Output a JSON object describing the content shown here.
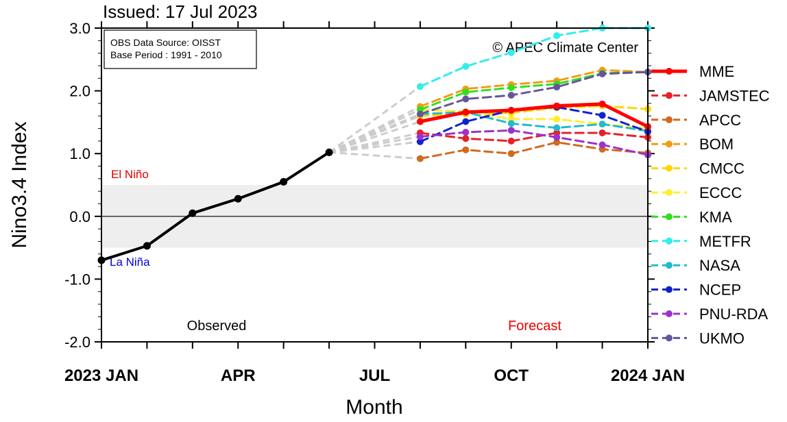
{
  "chart_data": {
    "type": "line",
    "title": "Issued: 17 Jul 2023",
    "xlabel": "Month",
    "ylabel": "Nino3.4 Index",
    "ylim": [
      -2.0,
      3.0
    ],
    "xlim": [
      "2023-01",
      "2024-01"
    ],
    "y_ticks": [
      "3.0",
      "2.0",
      "1.0",
      "0.0",
      "-1.0",
      "-2.0"
    ],
    "x_ticks": [
      {
        "month": "2023-01",
        "label": "2023 JAN"
      },
      {
        "month": "2023-04",
        "label": "APR"
      },
      {
        "month": "2023-07",
        "label": "JUL"
      },
      {
        "month": "2023-10",
        "label": "OCT"
      },
      {
        "month": "2024-01",
        "label": "2024 JAN"
      }
    ],
    "shaded_band": [
      -0.5,
      0.5
    ],
    "info_box": [
      "OBS Data Source: OISST",
      "Base Period : 1991 - 2010"
    ],
    "copyright": "© APEC Climate Center",
    "annotations": {
      "el_nino": "El Niño",
      "la_nina": "La Niña",
      "observed": "Observed",
      "forecast": "Forecast"
    },
    "observed": {
      "x": [
        "2023-01",
        "2023-02",
        "2023-03",
        "2023-04",
        "2023-05",
        "2023-06"
      ],
      "values": [
        -0.7,
        -0.47,
        0.05,
        0.28,
        0.55,
        1.02
      ],
      "color": "#000000"
    },
    "forecast_x": [
      "2023-08",
      "2023-09",
      "2023-10",
      "2023-11",
      "2023-12",
      "2024-01"
    ],
    "series": [
      {
        "name": "MME",
        "color": "#ff0000",
        "values": [
          1.51,
          1.66,
          1.69,
          1.76,
          1.79,
          1.43
        ]
      },
      {
        "name": "JAMSTEC",
        "color": "#e8202a",
        "values": [
          1.33,
          1.24,
          1.2,
          1.33,
          1.33,
          1.26
        ]
      },
      {
        "name": "APCC",
        "color": "#d2691e",
        "values": [
          0.92,
          1.06,
          1.0,
          1.18,
          1.07,
          1.01
        ]
      },
      {
        "name": "BOM",
        "color": "#f39c12",
        "values": [
          1.75,
          2.03,
          2.1,
          2.16,
          2.33,
          2.3
        ]
      },
      {
        "name": "CMCC",
        "color": "#ffd700",
        "values": [
          1.6,
          1.63,
          1.65,
          1.73,
          1.76,
          1.71
        ]
      },
      {
        "name": "ECCC",
        "color": "#ffee33",
        "values": [
          1.7,
          1.67,
          1.55,
          1.55,
          1.47,
          1.4
        ]
      },
      {
        "name": "KMA",
        "color": "#33dd22",
        "values": [
          1.7,
          1.98,
          2.05,
          2.11,
          2.28,
          2.3
        ]
      },
      {
        "name": "METFR",
        "color": "#33ecec",
        "values": [
          2.07,
          2.39,
          2.61,
          2.88,
          3.0,
          3.0
        ]
      },
      {
        "name": "NASA",
        "color": "#22bbcc",
        "values": [
          1.63,
          1.66,
          1.48,
          1.41,
          1.47,
          1.36
        ]
      },
      {
        "name": "NCEP",
        "color": "#1122cc",
        "values": [
          1.19,
          1.51,
          1.69,
          1.74,
          1.61,
          1.35
        ]
      },
      {
        "name": "PNU-RDA",
        "color": "#9933cc",
        "values": [
          1.27,
          1.34,
          1.37,
          1.26,
          1.14,
          0.98
        ]
      },
      {
        "name": "UKMO",
        "color": "#665599",
        "values": [
          1.63,
          1.87,
          1.93,
          2.06,
          2.27,
          2.3
        ]
      }
    ],
    "legend_position": "right"
  }
}
